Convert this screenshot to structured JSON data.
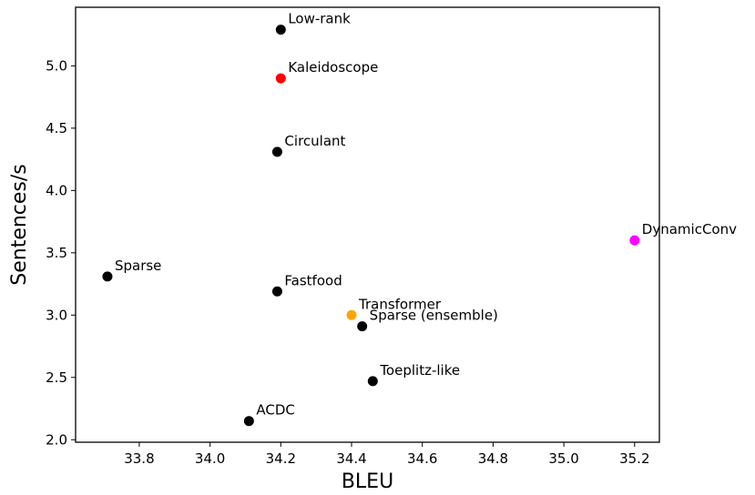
{
  "chart_data": {
    "type": "scatter",
    "xlabel": "BLEU",
    "ylabel": "Sentences/s",
    "xlim": [
      33.62,
      35.27
    ],
    "ylim": [
      1.98,
      5.47
    ],
    "xticks": [
      33.8,
      34.0,
      34.2,
      34.4,
      34.6,
      34.8,
      35.0,
      35.2
    ],
    "yticks": [
      2.0,
      2.5,
      3.0,
      3.5,
      4.0,
      4.5,
      5.0
    ],
    "grid": false,
    "legend": "none",
    "points": [
      {
        "label": "Low-rank",
        "x": 34.2,
        "y": 5.29,
        "color": "#000000"
      },
      {
        "label": "Kaleidoscope",
        "x": 34.2,
        "y": 4.9,
        "color": "#ff0000"
      },
      {
        "label": "Circulant",
        "x": 34.19,
        "y": 4.31,
        "color": "#000000"
      },
      {
        "label": "DynamicConv",
        "x": 35.2,
        "y": 3.6,
        "color": "#ff00ff"
      },
      {
        "label": "Sparse",
        "x": 33.71,
        "y": 3.31,
        "color": "#000000"
      },
      {
        "label": "Fastfood",
        "x": 34.19,
        "y": 3.19,
        "color": "#000000"
      },
      {
        "label": "Transformer",
        "x": 34.4,
        "y": 3.0,
        "color": "#ffa500"
      },
      {
        "label": "Sparse (ensemble)",
        "x": 34.43,
        "y": 2.91,
        "color": "#000000"
      },
      {
        "label": "Toeplitz-like",
        "x": 34.46,
        "y": 2.47,
        "color": "#000000"
      },
      {
        "label": "ACDC",
        "x": 34.11,
        "y": 2.15,
        "color": "#000000"
      }
    ]
  }
}
